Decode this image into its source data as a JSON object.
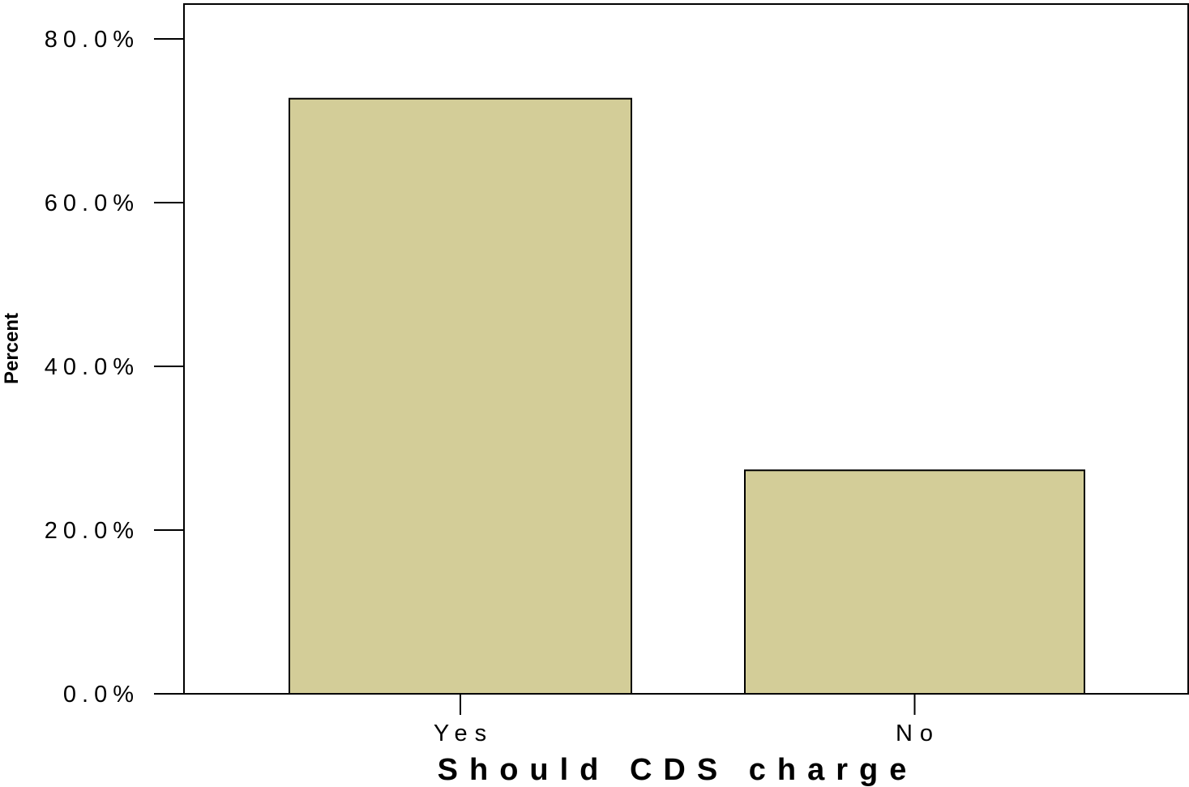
{
  "chart_data": {
    "type": "bar",
    "categories": [
      "Yes",
      "No"
    ],
    "values": [
      72.7,
      27.3
    ],
    "xlabel": "Should CDS charge",
    "ylabel": "Percent",
    "ylim": [
      0,
      85
    ],
    "yticks": [
      0,
      20,
      40,
      60,
      80
    ],
    "ytick_labels": [
      "0.0%",
      "20.0%",
      "40.0%",
      "60.0%",
      "80.0%"
    ],
    "grid": false,
    "legend": "none",
    "bar_color": "#d3cd98",
    "bar_edge_color": "#000000"
  }
}
